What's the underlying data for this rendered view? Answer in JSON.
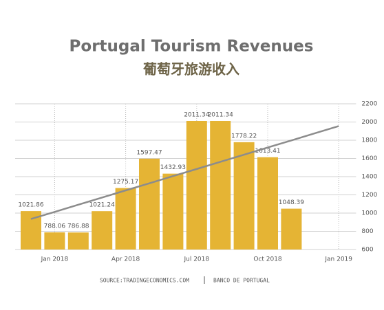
{
  "chart_data": {
    "type": "bar",
    "title": "Portugal Tourism Revenues",
    "subtitle": "葡萄牙旅游收入",
    "categories": [
      null,
      "Jan 2018",
      null,
      null,
      "Apr 2018",
      null,
      null,
      "Jul 2018",
      null,
      null,
      "Oct 2018",
      null,
      null,
      "Jan 2019"
    ],
    "series": [
      {
        "type": "bar",
        "color": "#e5b434",
        "values": [
          1021.86,
          788.06,
          786.88,
          1021.24,
          1275.17,
          1597.47,
          1432.93,
          2011.34,
          2011.34,
          1778.22,
          1613.41,
          1048.39,
          null,
          null
        ]
      },
      {
        "type": "line",
        "color": "#8c8c8c",
        "values": [
          935,
          1013,
          1092,
          1170,
          1249,
          1327,
          1406,
          1484,
          1563,
          1641,
          1720,
          1798,
          1877,
          1955
        ]
      }
    ],
    "ylim": [
      600,
      2200
    ],
    "yticks": [
      600,
      800,
      1000,
      1200,
      1400,
      1600,
      1800,
      2000,
      2200
    ],
    "y_axis_side": "right",
    "grid": true,
    "source": [
      "SOURCE:TRADINGECONOMICS.COM",
      "BANCO DE PORTUGAL"
    ]
  }
}
